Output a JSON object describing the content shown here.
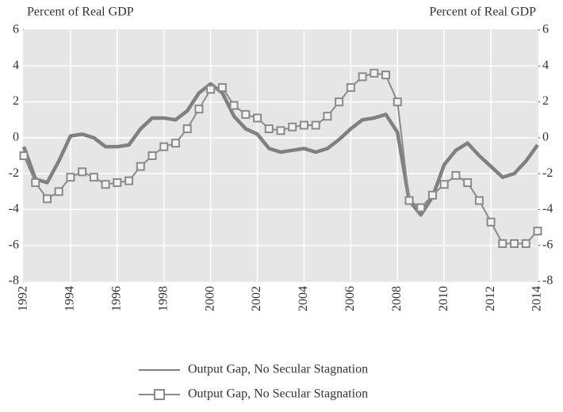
{
  "chart_data": {
    "type": "line",
    "ylabel": "Percent of Real GDP",
    "y2label": "Percent of Real GDP",
    "x": [
      1992,
      1992.5,
      1993,
      1993.5,
      1994,
      1994.5,
      1995,
      1995.5,
      1996,
      1996.5,
      1997,
      1997.5,
      1998,
      1998.5,
      1999,
      1999.5,
      2000,
      2000.5,
      2001,
      2001.5,
      2002,
      2002.5,
      2003,
      2003.5,
      2004,
      2004.5,
      2005,
      2005.5,
      2006,
      2006.5,
      2007,
      2007.5,
      2008,
      2008.5,
      2009,
      2009.5,
      2010,
      2010.5,
      2011,
      2011.5,
      2012,
      2012.5,
      2013,
      2013.5,
      2014
    ],
    "series": [
      {
        "name": "Output Gap, No Secular Stagnation",
        "color": "#808080",
        "marker": "none",
        "values": [
          -0.5,
          -2.3,
          -2.5,
          -1.3,
          0.1,
          0.2,
          0,
          -0.5,
          -0.5,
          -0.4,
          0.5,
          1.1,
          1.1,
          1.0,
          1.5,
          2.5,
          3.0,
          2.5,
          1.2,
          0.5,
          0.2,
          -0.6,
          -0.8,
          -0.7,
          -0.6,
          -0.8,
          -0.6,
          -0.1,
          0.5,
          1.0,
          1.1,
          1.3,
          0.3,
          -3.5,
          -4.3,
          -3.3,
          -1.5,
          -0.7,
          -0.3,
          -1.0,
          -1.6,
          -2.2,
          -2.0,
          -1.3,
          -0.4
        ]
      },
      {
        "name": "Output Gap, No Secular Stagnation",
        "color": "#8a8a8a",
        "marker": "square",
        "values": [
          -1.0,
          -2.5,
          -3.4,
          -3.0,
          -2.2,
          -1.9,
          -2.2,
          -2.6,
          -2.5,
          -2.4,
          -1.6,
          -1.0,
          -0.5,
          -0.3,
          0.5,
          1.6,
          2.7,
          2.8,
          1.8,
          1.3,
          1.1,
          0.5,
          0.4,
          0.6,
          0.7,
          0.7,
          1.2,
          2.0,
          2.8,
          3.4,
          3.6,
          3.5,
          2.0,
          -3.5,
          -3.9,
          -3.2,
          -2.6,
          -2.1,
          -2.5,
          -3.5,
          -4.7,
          -5.9,
          -5.9,
          -5.9,
          -5.2
        ]
      }
    ],
    "xlim": [
      1992,
      2014
    ],
    "xticks": [
      1992,
      1994,
      1996,
      1998,
      2000,
      2002,
      2004,
      2006,
      2008,
      2010,
      2012,
      2014
    ],
    "ylim": [
      -8,
      6
    ],
    "yticks": [
      -8,
      -6,
      -4,
      -2,
      0,
      2,
      4,
      6
    ],
    "y2lim": [
      -8,
      6
    ],
    "y2ticks": [
      -8,
      -6,
      -4,
      -2,
      0,
      2,
      4,
      6
    ],
    "grid": true
  }
}
